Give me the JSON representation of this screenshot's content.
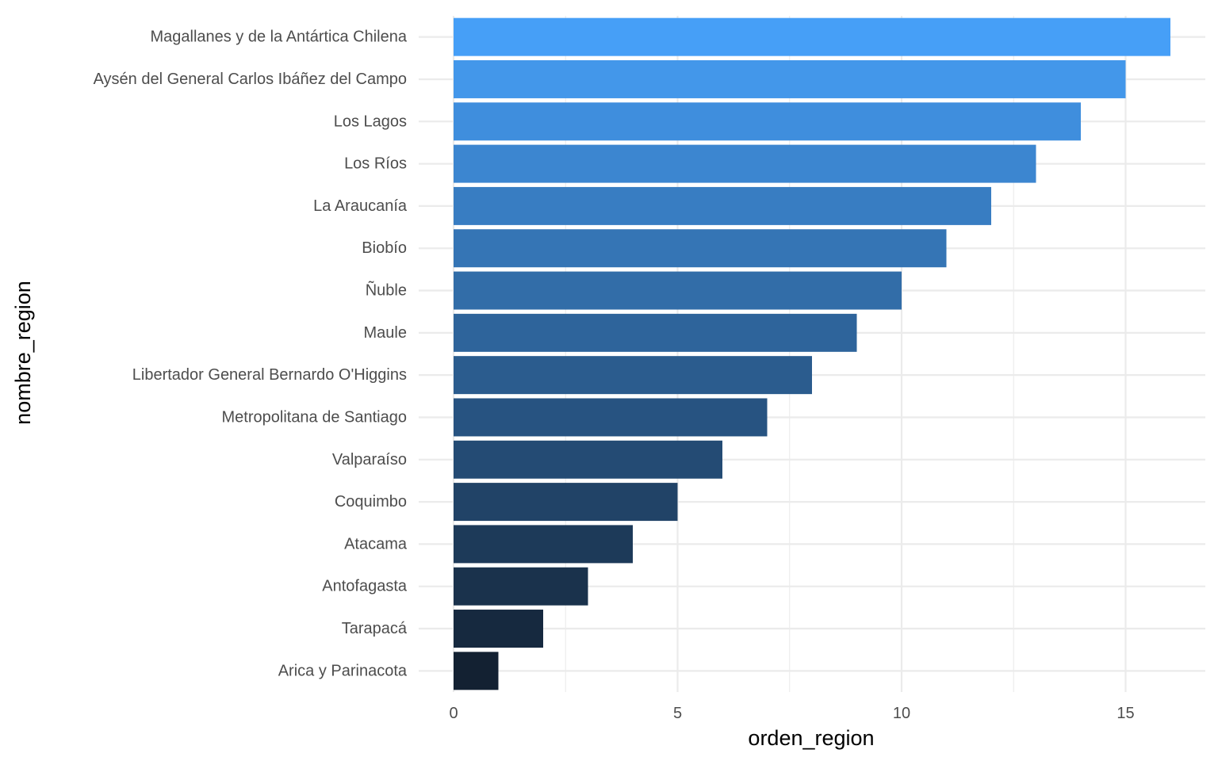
{
  "chart_data": {
    "type": "bar",
    "orientation": "horizontal",
    "categories": [
      "Arica y Parinacota",
      "Tarapacá",
      "Antofagasta",
      "Atacama",
      "Coquimbo",
      "Valparaíso",
      "Metropolitana de Santiago",
      "Libertador General Bernardo O'Higgins",
      "Maule",
      "Ñuble",
      "Biobío",
      "La Araucanía",
      "Los Ríos",
      "Los Lagos",
      "Aysén del General Carlos Ibáñez del Campo",
      "Magallanes y de la Antártica Chilena"
    ],
    "values": [
      1,
      2,
      3,
      4,
      5,
      6,
      7,
      8,
      9,
      10,
      11,
      12,
      13,
      14,
      15,
      16
    ],
    "xlabel": "orden_region",
    "ylabel": "nombre_region",
    "xlim": [
      0,
      16.83
    ],
    "xticks": [
      0,
      5,
      10,
      15
    ],
    "grid": true,
    "legend": "none",
    "color_low": "#132132",
    "color_high": "#469ff7"
  }
}
